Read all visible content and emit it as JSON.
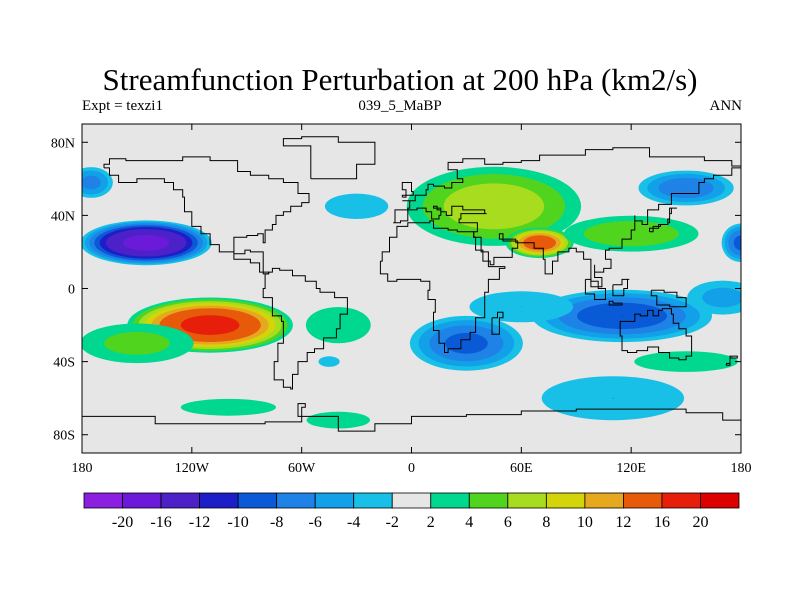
{
  "title": "Streamfunction Perturbation at 200 hPa (km2/s)",
  "subtitle_left": "Expt = texzi1",
  "subtitle_center": "039_5_MaBP",
  "subtitle_right": "ANN",
  "chart_data": {
    "type": "heatmap",
    "projection": "cylindrical-equidistant",
    "title": "Streamfunction Perturbation at 200 hPa (km2/s)",
    "xlim": [
      -180,
      180
    ],
    "ylim": [
      -90,
      90
    ],
    "x_ticks": [
      {
        "value": -180,
        "label": "180"
      },
      {
        "value": -120,
        "label": "120W"
      },
      {
        "value": -60,
        "label": "60W"
      },
      {
        "value": 0,
        "label": "0"
      },
      {
        "value": 60,
        "label": "60E"
      },
      {
        "value": 120,
        "label": "120E"
      },
      {
        "value": 180,
        "label": "180"
      }
    ],
    "y_ticks": [
      {
        "value": 80,
        "label": "80N"
      },
      {
        "value": 40,
        "label": "40N"
      },
      {
        "value": 0,
        "label": "0"
      },
      {
        "value": -40,
        "label": "40S"
      },
      {
        "value": -80,
        "label": "80S"
      }
    ],
    "colorbar": {
      "levels": [
        "-20",
        "-16",
        "-12",
        "-10",
        "-8",
        "-6",
        "-4",
        "-2",
        "2",
        "4",
        "6",
        "8",
        "10",
        "12",
        "16",
        "20"
      ],
      "colors": [
        "#8b1ee0",
        "#6a1ad8",
        "#4c22c8",
        "#1e1ec8",
        "#0a5ad8",
        "#1e82e6",
        "#12a0e8",
        "#18c0e8",
        "#e6e6e6",
        "#00d890",
        "#50d41e",
        "#a8dc1e",
        "#d4d40a",
        "#e6a81e",
        "#e65a0a",
        "#e61e0a",
        "#dc0000"
      ]
    },
    "field": [
      {
        "lon": -145,
        "lat": 25,
        "value": -18,
        "rx": 38,
        "ry": 13
      },
      {
        "lon": -175,
        "lat": 58,
        "value": -7,
        "rx": 14,
        "ry": 10
      },
      {
        "lon": -30,
        "lat": 45,
        "value": -3,
        "rx": 30,
        "ry": 12
      },
      {
        "lon": -110,
        "lat": -20,
        "value": 18,
        "rx": 48,
        "ry": 16
      },
      {
        "lon": -150,
        "lat": -30,
        "value": 5,
        "rx": 40,
        "ry": 14
      },
      {
        "lon": -40,
        "lat": -20,
        "value": 4,
        "rx": 25,
        "ry": 14
      },
      {
        "lon": -100,
        "lat": -65,
        "value": 3,
        "rx": 45,
        "ry": 8
      },
      {
        "lon": -40,
        "lat": -72,
        "value": 3,
        "rx": 30,
        "ry": 8
      },
      {
        "lon": -45,
        "lat": -40,
        "value": -3,
        "rx": 10,
        "ry": 5
      },
      {
        "lon": 45,
        "lat": 45,
        "value": 8,
        "rx": 55,
        "ry": 25
      },
      {
        "lon": 70,
        "lat": 25,
        "value": 15,
        "rx": 20,
        "ry": 9
      },
      {
        "lon": 120,
        "lat": 30,
        "value": 6,
        "rx": 45,
        "ry": 12
      },
      {
        "lon": 150,
        "lat": 55,
        "value": -8,
        "rx": 30,
        "ry": 11
      },
      {
        "lon": 180,
        "lat": 25,
        "value": -9,
        "rx": 12,
        "ry": 12
      },
      {
        "lon": 115,
        "lat": -15,
        "value": -10,
        "rx": 55,
        "ry": 16
      },
      {
        "lon": 30,
        "lat": -30,
        "value": -9,
        "rx": 35,
        "ry": 17
      },
      {
        "lon": 60,
        "lat": -10,
        "value": -4,
        "rx": 40,
        "ry": 12
      },
      {
        "lon": 150,
        "lat": -40,
        "value": 4,
        "rx": 40,
        "ry": 8
      },
      {
        "lon": 110,
        "lat": -60,
        "value": -4,
        "rx": 55,
        "ry": 17
      },
      {
        "lon": 170,
        "lat": -5,
        "value": -5,
        "rx": 25,
        "ry": 12
      }
    ]
  }
}
